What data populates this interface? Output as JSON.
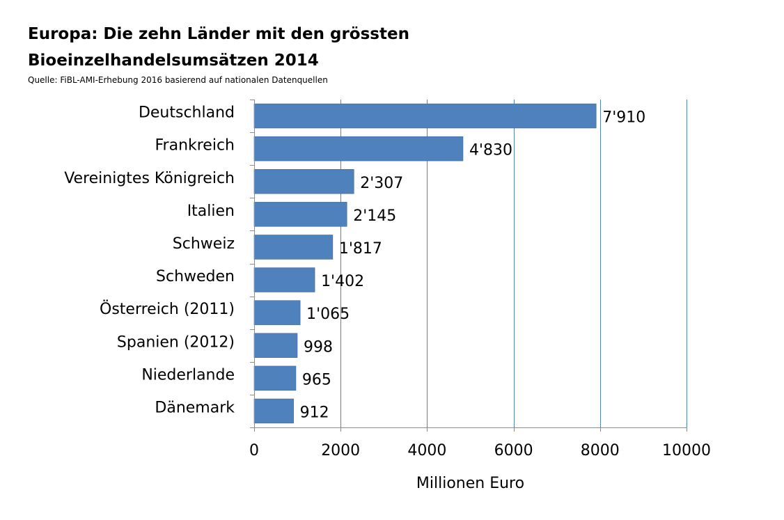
{
  "chart_data": {
    "type": "bar",
    "orientation": "horizontal",
    "title_lines": [
      "Europa:  Die zehn Länder mit den grössten",
      "Bioeinzelhandelsumsätzen 2014"
    ],
    "subtitle": "Quelle: FiBL-AMI-Erhebung 2016 basierend auf nationalen Datenquellen",
    "xlabel": "Millionen Euro",
    "ylabel": "",
    "xlim": [
      0,
      10000
    ],
    "x_ticks": [
      "0",
      "2000",
      "4000",
      "6000",
      "8000",
      "10000"
    ],
    "x_tick_values": [
      0,
      2000,
      4000,
      6000,
      8000,
      10000
    ],
    "grid": "vertical",
    "legend": "none",
    "bar_color": "#4f81bd",
    "grid_color": "#4f81bd",
    "categories": [
      "Deutschland",
      "Frankreich",
      "Vereinigtes Königreich",
      "Italien",
      "Schweiz",
      "Schweden",
      "Österreich (2011)",
      "Spanien (2012)",
      "Niederlande",
      "Dänemark"
    ],
    "values": [
      7910,
      4830,
      2307,
      2145,
      1817,
      1402,
      1065,
      998,
      965,
      912
    ],
    "data_labels": [
      "7'910",
      "4'830",
      "2'307",
      "2'145",
      "1'817",
      "1'402",
      "1'065",
      "998",
      "965",
      "912"
    ]
  }
}
